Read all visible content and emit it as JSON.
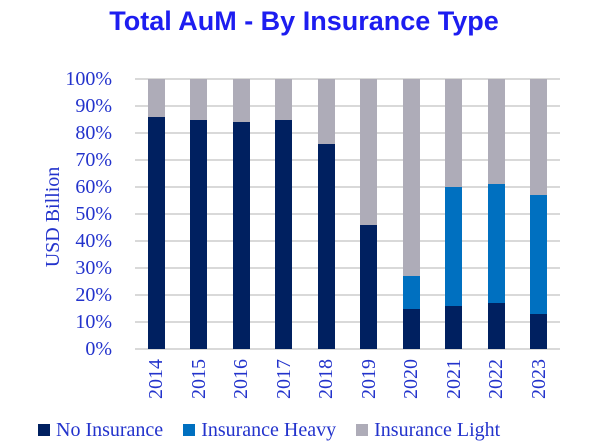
{
  "title": "Total AuM - By Insurance Type",
  "colors": {
    "no_insurance": "#002060",
    "insurance_heavy": "#0070C0",
    "insurance_light": "#AEACB8",
    "title_text": "#1D1DF0",
    "axis_text": "#2333CC",
    "gridline": "#D9D9D9"
  },
  "y_axis": {
    "label": "USD Billion",
    "ticks": [
      "100%",
      "90%",
      "80%",
      "70%",
      "60%",
      "50%",
      "40%",
      "30%",
      "20%",
      "10%",
      "0%"
    ]
  },
  "legend": [
    {
      "label": "No Insurance",
      "color_key": "no_insurance"
    },
    {
      "label": "Insurance Heavy",
      "color_key": "insurance_heavy"
    },
    {
      "label": "Insurance Light",
      "color_key": "insurance_light"
    }
  ],
  "chart_data": {
    "type": "bar",
    "stacked": true,
    "units": "percent of total",
    "title": "Total AuM - By Insurance Type",
    "xlabel": "",
    "ylabel": "USD Billion",
    "ylim": [
      0,
      100
    ],
    "grid": true,
    "legend_position": "bottom",
    "categories": [
      "2014",
      "2015",
      "2016",
      "2017",
      "2018",
      "2019",
      "2020",
      "2021",
      "2022",
      "2023"
    ],
    "series": [
      {
        "name": "No Insurance",
        "color_key": "no_insurance",
        "values": [
          86,
          85,
          84,
          85,
          76,
          46,
          15,
          16,
          17,
          13
        ]
      },
      {
        "name": "Insurance Heavy",
        "color_key": "insurance_heavy",
        "values": [
          0,
          0,
          0,
          0,
          0,
          0,
          12,
          44,
          44,
          44
        ]
      },
      {
        "name": "Insurance Light",
        "color_key": "insurance_light",
        "values": [
          14,
          15,
          16,
          15,
          24,
          54,
          73,
          40,
          39,
          43
        ]
      }
    ]
  }
}
